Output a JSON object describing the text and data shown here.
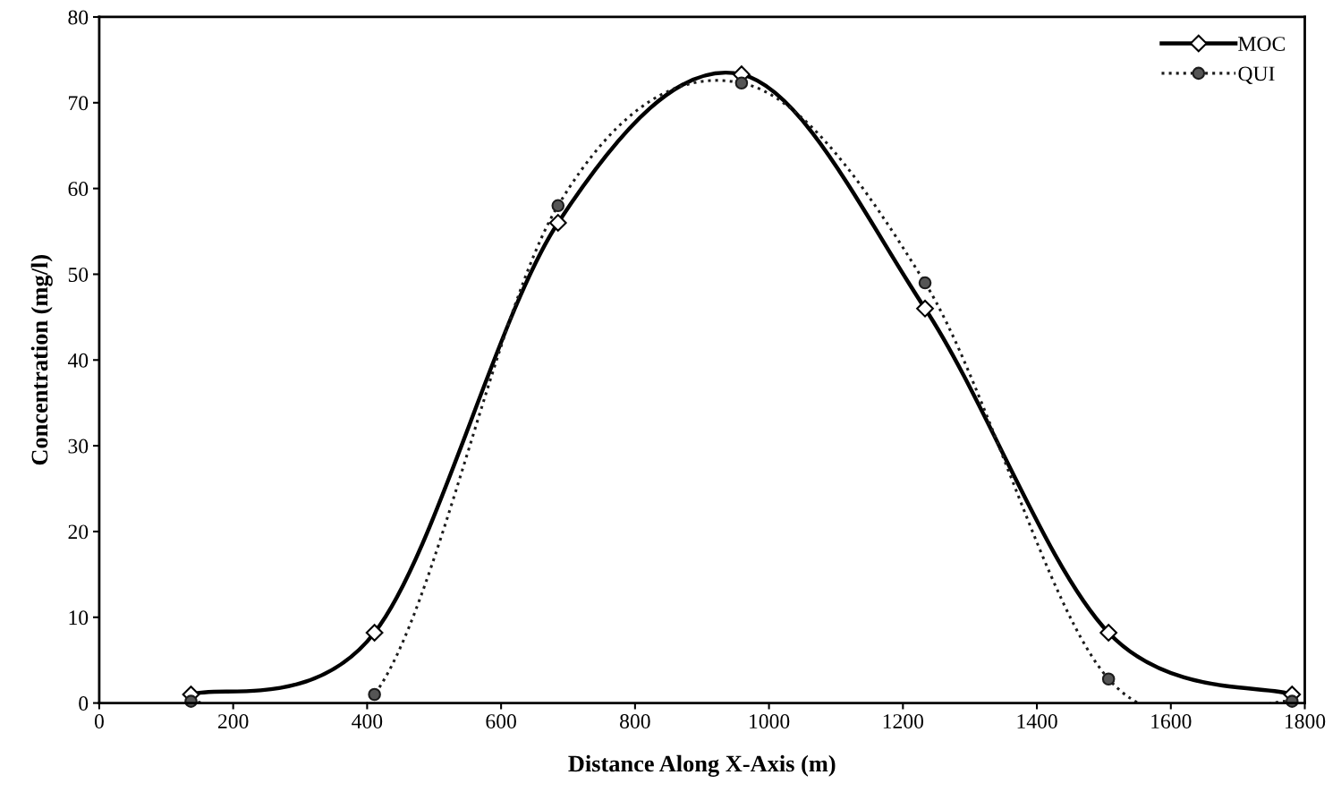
{
  "chart_data": {
    "type": "line",
    "xlabel": "Distance Along X-Axis (m)",
    "ylabel": "Concentration (mg/l)",
    "x": [
      137,
      411,
      685,
      959,
      1233,
      1507,
      1781
    ],
    "series": [
      {
        "name": "MOC",
        "color": "#000000",
        "marker": "diamond",
        "line_style": "solid",
        "values": [
          1,
          8.2,
          56,
          73.3,
          46,
          8.2,
          1
        ]
      },
      {
        "name": "QUI",
        "color": "#1c1c1c",
        "marker": "circle",
        "line_style": "dotted",
        "values": [
          0.2,
          1,
          58,
          72.3,
          49,
          2.8,
          0.2
        ]
      }
    ],
    "xlim": [
      0,
      1800
    ],
    "xticks": [
      0,
      200,
      400,
      600,
      800,
      1000,
      1200,
      1400,
      1600,
      1800
    ],
    "ylim": [
      0,
      80
    ],
    "yticks": [
      0,
      10,
      20,
      30,
      40,
      50,
      60,
      70,
      80
    ],
    "grid": false,
    "legend": "top right"
  }
}
